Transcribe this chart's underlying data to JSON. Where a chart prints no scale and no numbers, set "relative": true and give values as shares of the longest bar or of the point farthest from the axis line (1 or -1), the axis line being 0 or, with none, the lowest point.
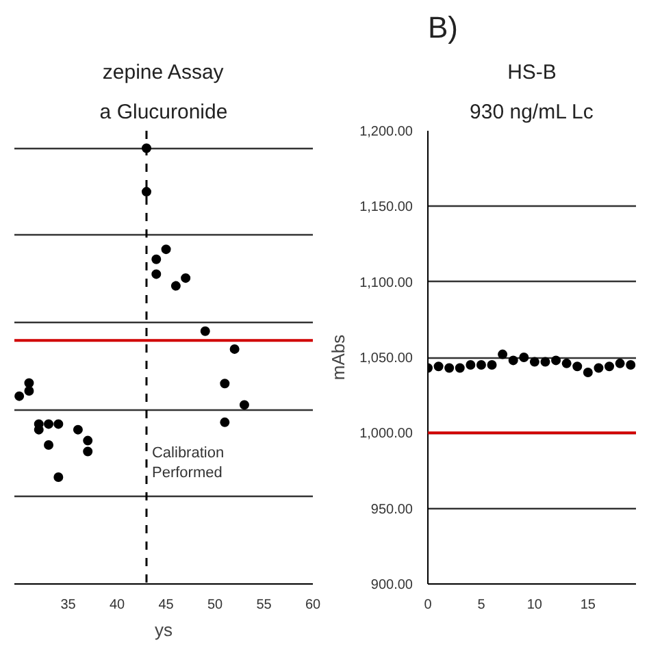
{
  "chart_data": [
    {
      "type": "scatter",
      "title": "zepine Assay",
      "subtitle": "a Glucuronide",
      "xlabel": "ys",
      "relative": true,
      "x": [
        30,
        31,
        31,
        32,
        32,
        33,
        33,
        34,
        34,
        36,
        37,
        37,
        43,
        43,
        44,
        44,
        45,
        46,
        47,
        49,
        51,
        51,
        52,
        53
      ],
      "values": [
        0.431,
        0.461,
        0.443,
        0.367,
        0.354,
        0.367,
        0.319,
        0.367,
        0.245,
        0.354,
        0.329,
        0.304,
        1.0,
        0.9,
        0.745,
        0.711,
        0.768,
        0.684,
        0.702,
        0.58,
        0.46,
        0.371,
        0.539,
        0.411
      ],
      "color": "#000000",
      "marker": "circle",
      "xlim": [
        29.5,
        60
      ],
      "xticks": [
        35,
        40,
        45,
        50,
        55,
        60
      ],
      "ref_lines": [
        {
          "axis": "y",
          "value": 0.559,
          "label": null,
          "color": "#d00000"
        },
        {
          "axis": "x",
          "value": 43,
          "label": "Calibration Performed",
          "color": "#000000",
          "line_style": "dashed"
        }
      ],
      "grid": "y",
      "tick_labels": "x"
    },
    {
      "type": "scatter",
      "title": "HS-B",
      "subtitle": "930 ng/mL Lc",
      "ylabel": "mAbs",
      "annotations": [
        "B)"
      ],
      "x": [
        0,
        1,
        2,
        3,
        4,
        5,
        6,
        7,
        8,
        9,
        10,
        11,
        12,
        13,
        14,
        15,
        16,
        17,
        18,
        19
      ],
      "values": [
        1043,
        1044,
        1043,
        1043,
        1045,
        1045,
        1045,
        1052,
        1048,
        1050,
        1047,
        1047,
        1048,
        1046,
        1044,
        1040,
        1043,
        1044,
        1046,
        1045
      ],
      "color": "#000000",
      "marker": "circle",
      "xlim": [
        0,
        19.5
      ],
      "xticks": [
        0,
        5,
        10,
        15
      ],
      "ylim": [
        900,
        1200
      ],
      "yticks": [
        {
          "value": 900,
          "label": "900.00"
        },
        {
          "value": 950,
          "label": "950.00"
        },
        {
          "value": 1000,
          "label": "1,000.00"
        },
        {
          "value": 1050,
          "label": "1,050.00"
        },
        {
          "value": 1100,
          "label": "1,100.00"
        },
        {
          "value": 1150,
          "label": "1,150.00"
        },
        {
          "value": 1200,
          "label": "1,200.00"
        }
      ],
      "ref_lines": [
        {
          "axis": "y",
          "value": 1000,
          "label": null,
          "color": "#d00000"
        }
      ],
      "grid": "y"
    }
  ]
}
